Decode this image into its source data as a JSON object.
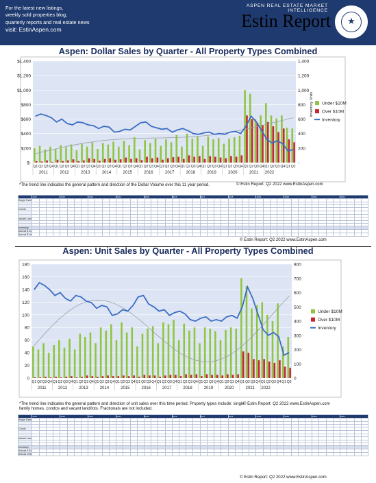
{
  "header": {
    "lines": [
      "For the latest new listings,",
      "weekly sold properties blog,",
      "quarterly reports and real estate news",
      "visit: EstinAspen.com"
    ],
    "kicker": "ASPEN REAL ESTATE MARKET INTELLIGENCE",
    "brand": "Estin Report"
  },
  "colors": {
    "under": "#8fc63f",
    "over": "#c8262f",
    "inventory": "#3a6cc4",
    "trend": "#9aa0a6",
    "header": "#1f3a6e",
    "plot_bg": "#dde4f3"
  },
  "years": [
    "2011",
    "2012",
    "2013",
    "2014",
    "2015",
    "2016",
    "2017",
    "2018",
    "2019",
    "2020",
    "2021",
    "2022"
  ],
  "q_labels": [
    "Q1",
    "Q2",
    "Q3",
    "Q4"
  ],
  "dollar": {
    "title": "Aspen:  Dollar Sales by Quarter  -  All Property Types Combined",
    "note": "*The trend line indicates the general pattern and direction of the Dollar Volume over this 11 year period.",
    "copy_right": "© Estin Report: Q2 2022 www.EstinAspen.com",
    "copy_table": "© Estin Report: Q2 2022 www.EstinAspen.com",
    "legend": [
      "Under $10M",
      "Over $10M",
      "Inventory"
    ],
    "y2label": "Inventory Units",
    "left_ticks": [
      "$1,400",
      "$1,200",
      "$1,000",
      "$800",
      "$600",
      "$400",
      "$200",
      "$-"
    ],
    "right_ticks": [
      "1,400",
      "1,200",
      "1,000",
      "800",
      "600",
      "400",
      "200",
      "-"
    ],
    "table_rows": [
      "Single Family",
      "Condo",
      "Vacant Land",
      "Inventory"
    ],
    "summary_rows": [
      "Annual $ Sold (M) / % Chg",
      "Annual $ Volume / % Chg"
    ]
  },
  "unit": {
    "title": "Aspen:  Unit Sales by Quarter  -  All Property Types Combined",
    "note": "*The trend line indicates the general pattern and direction of unit sales over this time period. Property types include: single family homes, condos and vacant land/lots. Fractionals are not included.",
    "copy_right": "© Estin Report: Q2 2022 www.EstinAspen.com",
    "copy_table": "© Estin Report: Q2 2022 www.EstinAspen.com",
    "legend": [
      "Under $10M",
      "Over $10M",
      "Inventory"
    ],
    "left_ticks": [
      "180",
      "160",
      "140",
      "120",
      "100",
      "80",
      "60",
      "40",
      "20",
      "0"
    ],
    "right_ticks": [
      "800",
      "700",
      "600",
      "500",
      "400",
      "300",
      "200",
      "100",
      "0"
    ],
    "table_rows": [
      "Single Family",
      "Condo",
      "Vacant Land",
      "Inventory"
    ],
    "summary_rows": [
      "Annual # Sold / % Chg",
      "Annual Unit Sales / % Chg"
    ]
  },
  "chart_data": [
    {
      "type": "bar",
      "title": "Aspen:  Dollar Sales by Quarter  -  All Property Types Combined",
      "unit": "$M",
      "ylim": [
        0,
        1400
      ],
      "y2lim": [
        0,
        1400
      ],
      "series": [
        {
          "name": "Under $10M",
          "values": [
            200,
            230,
            180,
            220,
            190,
            240,
            210,
            250,
            170,
            260,
            220,
            280,
            190,
            270,
            250,
            290,
            220,
            300,
            240,
            350,
            180,
            310,
            270,
            330,
            230,
            320,
            280,
            380,
            220,
            400,
            330,
            360,
            230,
            360,
            320,
            340,
            260,
            330,
            350,
            370,
            1000,
            950,
            600,
            650,
            820,
            650,
            610,
            650,
            480,
            470
          ]
        },
        {
          "name": "Over $10M",
          "values": [
            20,
            15,
            30,
            10,
            40,
            20,
            30,
            45,
            20,
            30,
            60,
            50,
            25,
            50,
            60,
            40,
            45,
            70,
            50,
            60,
            35,
            80,
            60,
            70,
            40,
            60,
            75,
            80,
            50,
            100,
            80,
            90,
            50,
            90,
            80,
            70,
            60,
            90,
            80,
            100,
            650,
            600,
            550,
            520,
            560,
            500,
            420,
            470,
            320,
            280
          ]
        },
        {
          "name": "Inventory",
          "values": [
            640,
            670,
            650,
            620,
            560,
            600,
            540,
            520,
            560,
            550,
            520,
            510,
            470,
            500,
            490,
            420,
            430,
            460,
            450,
            500,
            550,
            560,
            500,
            480,
            460,
            470,
            420,
            450,
            470,
            440,
            400,
            390,
            410,
            420,
            390,
            400,
            390,
            420,
            430,
            400,
            500,
            640,
            560,
            440,
            320,
            270,
            300,
            260,
            160,
            180
          ]
        }
      ]
    },
    {
      "type": "bar",
      "title": "Aspen:  Unit Sales by Quarter  -  All Property Types Combined",
      "ylim": [
        0,
        180
      ],
      "y2lim": [
        0,
        800
      ],
      "series": [
        {
          "name": "Under $10M",
          "values": [
            50,
            45,
            55,
            40,
            52,
            60,
            48,
            62,
            45,
            70,
            65,
            72,
            55,
            80,
            75,
            85,
            60,
            88,
            72,
            80,
            50,
            70,
            78,
            82,
            55,
            88,
            85,
            92,
            60,
            86,
            75,
            80,
            55,
            80,
            78,
            74,
            60,
            76,
            80,
            78,
            158,
            145,
            110,
            115,
            120,
            100,
            90,
            118,
            50,
            65
          ]
        },
        {
          "name": "Over $10M",
          "values": [
            1,
            1,
            2,
            1,
            2,
            1,
            2,
            3,
            1,
            2,
            4,
            3,
            2,
            3,
            4,
            3,
            3,
            4,
            3,
            4,
            2,
            5,
            4,
            4,
            2,
            4,
            5,
            5,
            3,
            6,
            5,
            6,
            3,
            6,
            5,
            5,
            4,
            6,
            5,
            6,
            42,
            40,
            30,
            28,
            30,
            26,
            24,
            28,
            18,
            16
          ]
        },
        {
          "name": "Inventory",
          "values": [
            620,
            670,
            650,
            620,
            580,
            600,
            560,
            540,
            580,
            570,
            540,
            530,
            490,
            510,
            500,
            440,
            450,
            480,
            470,
            510,
            570,
            580,
            520,
            500,
            470,
            480,
            440,
            460,
            470,
            450,
            410,
            400,
            420,
            430,
            400,
            410,
            400,
            430,
            440,
            420,
            500,
            640,
            560,
            450,
            340,
            300,
            320,
            290,
            160,
            180
          ]
        }
      ]
    }
  ]
}
